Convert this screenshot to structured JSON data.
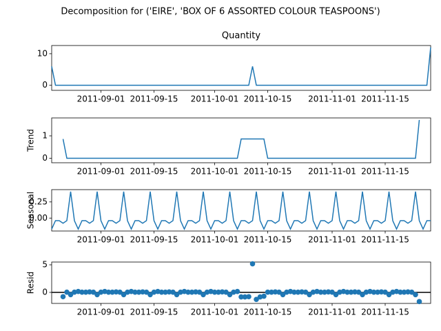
{
  "title": "Decomposition for ('EIRE', 'BOX OF 6 ASSORTED COLOUR TEASPOONS')",
  "x": [
    "2011-08-19",
    "2011-08-20",
    "2011-08-21",
    "2011-08-22",
    "2011-08-23",
    "2011-08-24",
    "2011-08-25",
    "2011-08-26",
    "2011-08-27",
    "2011-08-28",
    "2011-08-29",
    "2011-08-30",
    "2011-08-31",
    "2011-09-01",
    "2011-09-02",
    "2011-09-03",
    "2011-09-04",
    "2011-09-05",
    "2011-09-06",
    "2011-09-07",
    "2011-09-08",
    "2011-09-09",
    "2011-09-10",
    "2011-09-11",
    "2011-09-12",
    "2011-09-13",
    "2011-09-14",
    "2011-09-15",
    "2011-09-16",
    "2011-09-17",
    "2011-09-18",
    "2011-09-19",
    "2011-09-20",
    "2011-09-21",
    "2011-09-22",
    "2011-09-23",
    "2011-09-24",
    "2011-09-25",
    "2011-09-26",
    "2011-09-27",
    "2011-09-28",
    "2011-09-29",
    "2011-09-30",
    "2011-10-01",
    "2011-10-02",
    "2011-10-03",
    "2011-10-04",
    "2011-10-05",
    "2011-10-06",
    "2011-10-07",
    "2011-10-08",
    "2011-10-09",
    "2011-10-10",
    "2011-10-11",
    "2011-10-12",
    "2011-10-13",
    "2011-10-14",
    "2011-10-15",
    "2011-10-16",
    "2011-10-17",
    "2011-10-18",
    "2011-10-19",
    "2011-10-20",
    "2011-10-21",
    "2011-10-22",
    "2011-10-23",
    "2011-10-24",
    "2011-10-25",
    "2011-10-26",
    "2011-10-27",
    "2011-10-28",
    "2011-10-29",
    "2011-10-30",
    "2011-10-31",
    "2011-11-01",
    "2011-11-02",
    "2011-11-03",
    "2011-11-04",
    "2011-11-05",
    "2011-11-06",
    "2011-11-07",
    "2011-11-08",
    "2011-11-09",
    "2011-11-10",
    "2011-11-11",
    "2011-11-12",
    "2011-11-13",
    "2011-11-14",
    "2011-11-15",
    "2011-11-16",
    "2011-11-17",
    "2011-11-18",
    "2011-11-19",
    "2011-11-20",
    "2011-11-21",
    "2011-11-22",
    "2011-11-23",
    "2011-11-24",
    "2011-11-25",
    "2011-11-26",
    "2011-11-27"
  ],
  "xlim": [
    "2011-08-19",
    "2011-11-27"
  ],
  "xticks": [
    "2011-09-01",
    "2011-09-15",
    "2011-10-01",
    "2011-10-15",
    "2011-11-01",
    "2011-11-15"
  ],
  "chart_data": [
    {
      "type": "line",
      "title": "Quantity",
      "color": "#1f77b4",
      "ylim": [
        -1.6,
        12.6
      ],
      "yticks": [
        0,
        10
      ],
      "values": [
        6,
        0,
        0,
        0,
        0,
        0,
        0,
        0,
        0,
        0,
        0,
        0,
        0,
        0,
        0,
        0,
        0,
        0,
        0,
        0,
        0,
        0,
        0,
        0,
        0,
        0,
        0,
        0,
        0,
        0,
        0,
        0,
        0,
        0,
        0,
        0,
        0,
        0,
        0,
        0,
        0,
        0,
        0,
        0,
        0,
        0,
        0,
        0,
        0,
        0,
        0,
        0,
        0,
        6,
        0,
        0,
        0,
        0,
        0,
        0,
        0,
        0,
        0,
        0,
        0,
        0,
        0,
        0,
        0,
        0,
        0,
        0,
        0,
        0,
        0,
        0,
        0,
        0,
        0,
        0,
        0,
        0,
        0,
        0,
        0,
        0,
        0,
        0,
        0,
        0,
        0,
        0,
        0,
        0,
        0,
        0,
        0,
        0,
        0,
        0,
        12
      ]
    },
    {
      "type": "line",
      "ylabel": "Trend",
      "color": "#1f77b4",
      "ylim": [
        -0.2,
        1.8
      ],
      "yticks": [
        0,
        1
      ],
      "values": [
        null,
        null,
        null,
        0.86,
        0,
        0,
        0,
        0,
        0,
        0,
        0,
        0,
        0,
        0,
        0,
        0,
        0,
        0,
        0,
        0,
        0,
        0,
        0,
        0,
        0,
        0,
        0,
        0,
        0,
        0,
        0,
        0,
        0,
        0,
        0,
        0,
        0,
        0,
        0,
        0,
        0,
        0,
        0,
        0,
        0,
        0,
        0,
        0,
        0,
        0,
        0.86,
        0.86,
        0.86,
        0.86,
        0.86,
        0.86,
        0.86,
        0,
        0,
        0,
        0,
        0,
        0,
        0,
        0,
        0,
        0,
        0,
        0,
        0,
        0,
        0,
        0,
        0,
        0,
        0,
        0,
        0,
        0,
        0,
        0,
        0,
        0,
        0,
        0,
        0,
        0,
        0,
        0,
        0,
        0,
        0,
        0,
        0,
        0,
        0,
        0,
        1.71,
        null,
        null,
        null
      ]
    },
    {
      "type": "line",
      "ylabel": "Seasonal",
      "color": "#1f77b4",
      "ylim": [
        -0.2,
        0.44
      ],
      "yticks": [
        0.25,
        {
          "value": 0,
          "label": "0.00"
        }
      ],
      "values": [
        -0.17,
        -0.04,
        -0.04,
        -0.08,
        -0.04,
        0.41,
        -0.04,
        -0.17,
        -0.04,
        -0.04,
        -0.08,
        -0.04,
        0.41,
        -0.04,
        -0.17,
        -0.04,
        -0.04,
        -0.08,
        -0.04,
        0.41,
        -0.04,
        -0.17,
        -0.04,
        -0.04,
        -0.08,
        -0.04,
        0.41,
        -0.04,
        -0.17,
        -0.04,
        -0.04,
        -0.08,
        -0.04,
        0.41,
        -0.04,
        -0.17,
        -0.04,
        -0.04,
        -0.08,
        -0.04,
        0.41,
        -0.04,
        -0.17,
        -0.04,
        -0.04,
        -0.08,
        -0.04,
        0.41,
        -0.04,
        -0.17,
        -0.04,
        -0.04,
        -0.08,
        -0.04,
        0.41,
        -0.04,
        -0.17,
        -0.04,
        -0.04,
        -0.08,
        -0.04,
        0.41,
        -0.04,
        -0.17,
        -0.04,
        -0.04,
        -0.08,
        -0.04,
        0.41,
        -0.04,
        -0.17,
        -0.04,
        -0.04,
        -0.08,
        -0.04,
        0.41,
        -0.04,
        -0.17,
        -0.04,
        -0.04,
        -0.08,
        -0.04,
        0.41,
        -0.04,
        -0.17,
        -0.04,
        -0.04,
        -0.08,
        -0.04,
        0.41,
        -0.04,
        -0.17,
        -0.04,
        -0.04,
        -0.08,
        -0.04,
        0.41,
        -0.04,
        -0.17,
        -0.04,
        -0.04
      ]
    },
    {
      "type": "scatter",
      "ylabel": "Resid",
      "color": "#1f77b4",
      "zero_line": true,
      "ylim": [
        -2.0,
        5.5
      ],
      "yticks": [
        0,
        5
      ],
      "values": [
        null,
        null,
        null,
        -0.78,
        0.04,
        -0.41,
        0.04,
        0.17,
        0.04,
        0.04,
        0.08,
        0.04,
        -0.41,
        0.04,
        0.17,
        0.04,
        0.04,
        0.08,
        0.04,
        -0.41,
        0.04,
        0.17,
        0.04,
        0.04,
        0.08,
        0.04,
        -0.41,
        0.04,
        0.17,
        0.04,
        0.04,
        0.08,
        0.04,
        -0.41,
        0.04,
        0.17,
        0.04,
        0.04,
        0.08,
        0.04,
        -0.41,
        0.04,
        0.17,
        0.04,
        0.04,
        0.08,
        0.04,
        -0.41,
        0.04,
        0.17,
        -0.82,
        -0.82,
        -0.78,
        5.18,
        -1.27,
        -0.82,
        -0.69,
        0.04,
        0.04,
        0.08,
        0.04,
        -0.41,
        0.04,
        0.17,
        0.04,
        0.04,
        0.08,
        0.04,
        -0.41,
        0.04,
        0.17,
        0.04,
        0.04,
        0.08,
        0.04,
        -0.41,
        0.04,
        0.17,
        0.04,
        0.04,
        0.08,
        0.04,
        -0.41,
        0.04,
        0.17,
        0.04,
        0.04,
        0.08,
        0.04,
        -0.41,
        0.04,
        0.17,
        0.04,
        0.04,
        0.08,
        0.04,
        -0.41,
        -1.67,
        null,
        null,
        null
      ]
    }
  ]
}
